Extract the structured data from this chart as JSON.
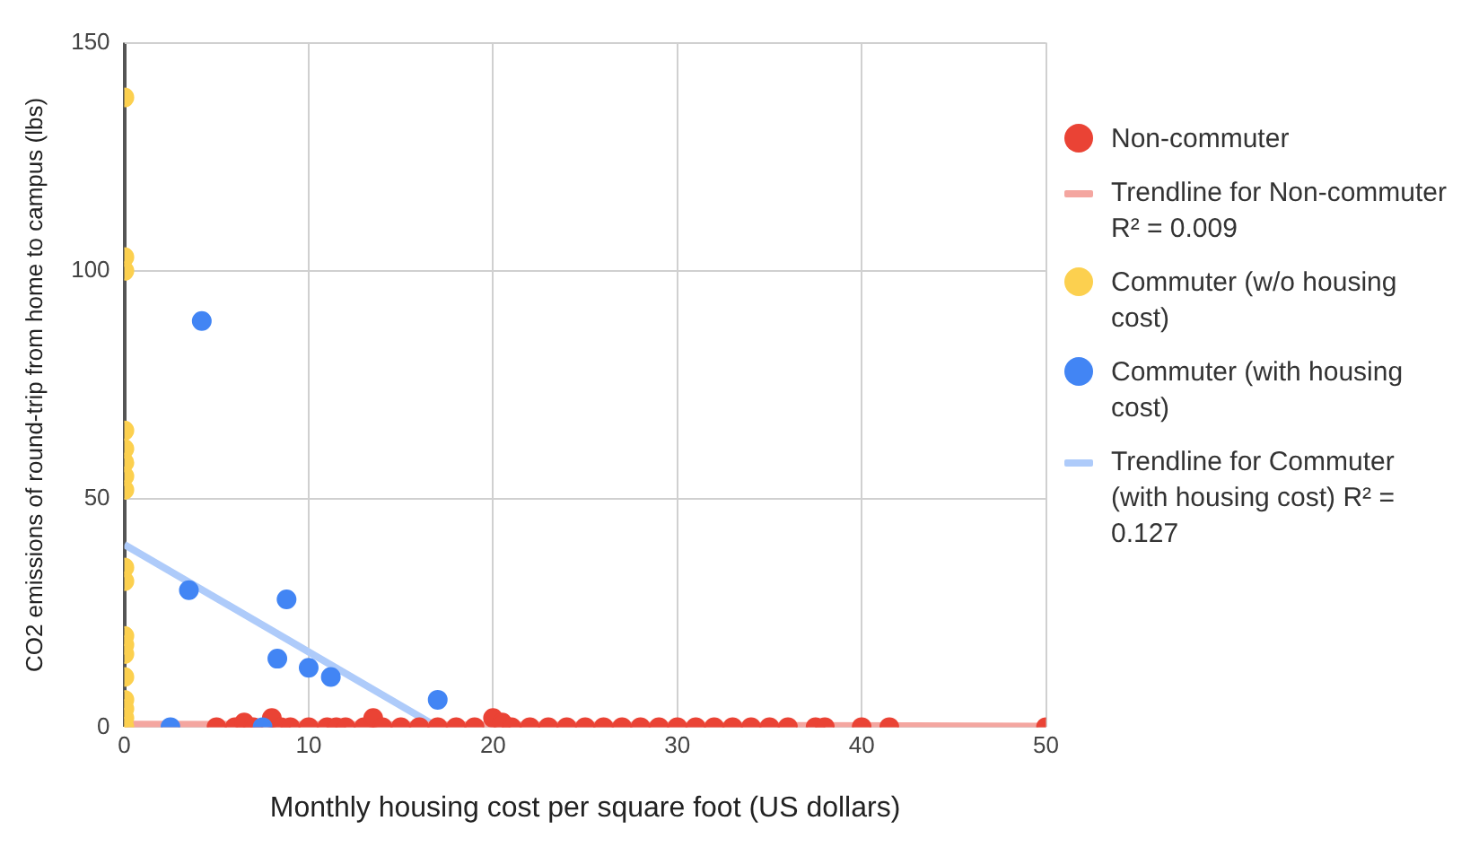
{
  "chart_data": {
    "type": "scatter",
    "xlabel": "Monthly housing cost per square foot (US dollars)",
    "ylabel": "CO2 emissions of round-trip from home to campus (lbs)",
    "xlim": [
      0,
      50
    ],
    "ylim": [
      0,
      150
    ],
    "xticks": [
      0,
      10,
      20,
      30,
      40,
      50
    ],
    "yticks": [
      0,
      50,
      100,
      150
    ],
    "grid": true,
    "legend": "right",
    "marker": "circle",
    "series": [
      {
        "name": "Non-commuter",
        "color": "#ea4335",
        "x": [
          5,
          6,
          6.5,
          7,
          7.5,
          8,
          8.5,
          9,
          10,
          11,
          11.5,
          12,
          13,
          13.5,
          14,
          15,
          16,
          17,
          18,
          19,
          20,
          20.5,
          21,
          22,
          23,
          24,
          25,
          26,
          27,
          28,
          29,
          30,
          31,
          32,
          33,
          34,
          35,
          36,
          37.5,
          38,
          40,
          41.5,
          50
        ],
        "values": [
          0,
          0,
          1,
          0,
          null,
          2,
          0,
          0,
          0,
          0,
          0,
          0,
          0,
          2,
          0,
          0,
          0,
          0,
          0,
          0,
          2,
          1,
          0,
          0,
          0,
          0,
          0,
          0,
          0,
          0,
          0,
          0,
          0,
          0,
          0,
          0,
          0,
          0,
          0,
          0,
          0,
          0,
          0
        ]
      },
      {
        "name": "Trendline for Non-commuter  R² = 0.009",
        "type": "line",
        "color": "#f4a6a0",
        "marker": "none",
        "x": [
          0,
          50
        ],
        "values": [
          0.6,
          0.2
        ]
      },
      {
        "name": "Commuter (w/o housing cost)",
        "color": "#fcd04f",
        "x": [
          0,
          0,
          0,
          0,
          0,
          0,
          0,
          0,
          0,
          0,
          0,
          0,
          0,
          0,
          0,
          0,
          0,
          0
        ],
        "values": [
          138,
          103,
          100,
          65,
          61,
          58,
          55,
          52,
          35,
          32,
          20,
          18,
          16,
          11,
          6,
          4,
          2,
          0
        ]
      },
      {
        "name": "Commuter (with housing cost)",
        "color": "#4285f4",
        "x": [
          4.2,
          3.5,
          8.8,
          8.3,
          10,
          11.2,
          17,
          2.5,
          7.5
        ],
        "values": [
          89,
          30,
          28,
          15,
          13,
          11,
          6,
          0,
          0
        ]
      },
      {
        "name": "Trendline for Commuter (with housing cost) R² = 0.127",
        "type": "line",
        "color": "#aecbfa",
        "marker": "none",
        "x": [
          0,
          17
        ],
        "values": [
          40,
          0
        ]
      }
    ]
  }
}
